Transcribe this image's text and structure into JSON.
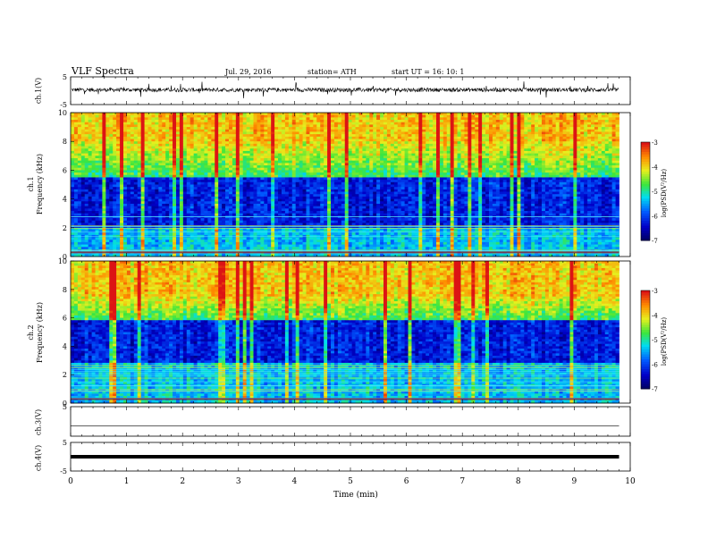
{
  "header": {
    "title": "VLF  Spectra",
    "date": "Jul.  29,  2016",
    "station": "station= ATH",
    "start": "start  UT  =    16: 10: 1"
  },
  "chart_data": [
    {
      "type": "line",
      "panel": "ch1-waveform",
      "ylabel": "ch.1(V)",
      "yticks": [
        "5",
        "-5"
      ],
      "ylim": [
        -5,
        5
      ],
      "xlim": [
        0,
        10
      ],
      "line_color": "#000000"
    },
    {
      "type": "heatmap",
      "panel": "ch1-spectrogram",
      "ylabel": "ch.1\nFrequency  (kHz)",
      "ylabel_line1": "ch.1",
      "ylabel_line2": "Frequency  (kHz)",
      "yticks": [
        "10",
        "8",
        "6",
        "4",
        "2",
        "0"
      ],
      "ylim": [
        0,
        10
      ],
      "xlim": [
        0,
        10
      ],
      "data_end_min": 9.8,
      "colorbar": {
        "label": "log(PSD(V²/Hz)",
        "ticks": [
          "-3",
          "-4",
          "-5",
          "-6",
          "-7"
        ],
        "range": [
          -7,
          -3
        ]
      },
      "dark_band_khz": [
        2.0,
        5.5
      ],
      "hot_band_khz": [
        8.0,
        10.0
      ]
    },
    {
      "type": "heatmap",
      "panel": "ch2-spectrogram",
      "ylabel": "ch.2\nFrequency  (kHz)",
      "ylabel_line1": "ch.2",
      "ylabel_line2": "Frequency  (kHz)",
      "yticks": [
        "10",
        "8",
        "6",
        "4",
        "2",
        "0"
      ],
      "ylim": [
        0,
        10
      ],
      "xlim": [
        0,
        10
      ],
      "data_end_min": 9.8,
      "colorbar": {
        "label": "log(PSD(V²/Hz)",
        "ticks": [
          "-3",
          "-4",
          "-5",
          "-6",
          "-7"
        ],
        "range": [
          -7,
          -3
        ]
      },
      "dark_band_khz": [
        2.8,
        5.8
      ],
      "hot_band_khz": [
        7.5,
        10.0
      ]
    },
    {
      "type": "line",
      "panel": "ch3-waveform",
      "ylabel": "ch.3(V)",
      "yticks": [
        "5"
      ],
      "ylim": [
        -5,
        5
      ],
      "xlim": [
        0,
        10
      ]
    },
    {
      "type": "line",
      "panel": "ch4-waveform",
      "ylabel": "ch.4(V)",
      "yticks": [
        "5",
        "-5"
      ],
      "ylim": [
        -5,
        5
      ],
      "xlim": [
        0,
        10
      ]
    }
  ],
  "xaxis": {
    "label": "Time  (min)",
    "ticks": [
      "0",
      "1",
      "2",
      "3",
      "4",
      "5",
      "6",
      "7",
      "8",
      "9",
      "10"
    ]
  }
}
